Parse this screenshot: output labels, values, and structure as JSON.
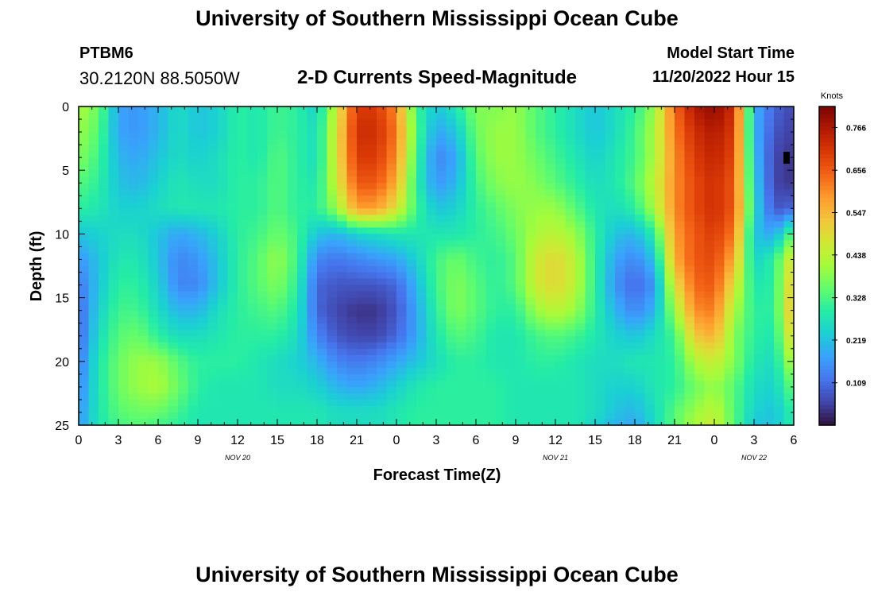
{
  "header": {
    "title": "University of Southern Mississippi Ocean Cube",
    "station_id": "PTBM6",
    "station_coords": "30.2120N  88.5050W",
    "subtitle": "2-D Currents Speed-Magnitude",
    "model_start_label": "Model Start Time",
    "model_start_value": "11/20/2022 Hour 15"
  },
  "footer": {
    "title": "University of Southern Mississippi Ocean Cube"
  },
  "chart_data": {
    "type": "heatmap",
    "title": "2-D Currents Speed-Magnitude",
    "xlabel": "Forecast Time(Z)",
    "ylabel": "Depth (ft)",
    "x_range_hours": [
      0,
      54
    ],
    "ylim": [
      0,
      25
    ],
    "y_inverted": true,
    "x_ticks": [
      "0",
      "3",
      "6",
      "9",
      "12",
      "15",
      "18",
      "21",
      "0",
      "3",
      "6",
      "9",
      "12",
      "15",
      "18",
      "21",
      "0",
      "3",
      "6"
    ],
    "y_ticks": [
      0,
      5,
      10,
      15,
      20,
      25
    ],
    "date_labels": [
      {
        "label": "NOV 20",
        "hour": 12
      },
      {
        "label": "NOV 21",
        "hour": 36
      },
      {
        "label": "NOV 22",
        "hour": 51
      }
    ],
    "colorbar": {
      "unit": "Knots",
      "min": 0.0,
      "max": 0.82,
      "ticks": [
        0.766,
        0.656,
        0.547,
        0.438,
        0.328,
        0.219,
        0.109
      ],
      "colors": [
        "#30123b",
        "#4145ab",
        "#4675ed",
        "#39a2fc",
        "#1bcfd4",
        "#24eca6",
        "#61fc6c",
        "#a4fc3b",
        "#d1e834",
        "#f3c63a",
        "#fe9b2d",
        "#f36315",
        "#d93806",
        "#b11901",
        "#7a0403"
      ]
    },
    "grid_hours": [
      0,
      1.5,
      3,
      4.5,
      6,
      7.5,
      9,
      10.5,
      12,
      13.5,
      15,
      16.5,
      18,
      19.5,
      21,
      22.5,
      24,
      25.5,
      27,
      28.5,
      30,
      31.5,
      33,
      34.5,
      36,
      37.5,
      39,
      40.5,
      42,
      43.5,
      45,
      46.5,
      48,
      49.5,
      51,
      52.5,
      54
    ],
    "grid_depths_ft": [
      0,
      2,
      4,
      6,
      8,
      10,
      12,
      14,
      16,
      18,
      20,
      22,
      24,
      25
    ],
    "speed_knots": [
      [
        0.42,
        0.36,
        0.18,
        0.16,
        0.2,
        0.26,
        0.22,
        0.24,
        0.3,
        0.28,
        0.32,
        0.3,
        0.24,
        0.46,
        0.7,
        0.7,
        0.6,
        0.32,
        0.22,
        0.28,
        0.38,
        0.38,
        0.4,
        0.34,
        0.3,
        0.26,
        0.22,
        0.26,
        0.3,
        0.4,
        0.64,
        0.76,
        0.8,
        0.72,
        0.2,
        0.1,
        0.06
      ],
      [
        0.4,
        0.34,
        0.18,
        0.16,
        0.2,
        0.26,
        0.22,
        0.24,
        0.3,
        0.28,
        0.32,
        0.3,
        0.26,
        0.48,
        0.72,
        0.72,
        0.62,
        0.34,
        0.18,
        0.22,
        0.36,
        0.4,
        0.4,
        0.34,
        0.3,
        0.26,
        0.22,
        0.26,
        0.32,
        0.42,
        0.62,
        0.72,
        0.76,
        0.7,
        0.2,
        0.08,
        0.05
      ],
      [
        0.38,
        0.32,
        0.2,
        0.18,
        0.22,
        0.26,
        0.24,
        0.26,
        0.3,
        0.28,
        0.34,
        0.3,
        0.26,
        0.48,
        0.7,
        0.7,
        0.6,
        0.32,
        0.14,
        0.18,
        0.34,
        0.4,
        0.4,
        0.36,
        0.32,
        0.28,
        0.24,
        0.28,
        0.32,
        0.42,
        0.6,
        0.7,
        0.74,
        0.68,
        0.22,
        0.06,
        0.04
      ],
      [
        0.34,
        0.3,
        0.22,
        0.2,
        0.24,
        0.28,
        0.26,
        0.26,
        0.3,
        0.3,
        0.34,
        0.3,
        0.28,
        0.46,
        0.66,
        0.66,
        0.56,
        0.3,
        0.16,
        0.2,
        0.32,
        0.38,
        0.4,
        0.38,
        0.34,
        0.3,
        0.26,
        0.28,
        0.34,
        0.44,
        0.6,
        0.68,
        0.72,
        0.66,
        0.24,
        0.06,
        0.04
      ],
      [
        0.3,
        0.28,
        0.24,
        0.24,
        0.26,
        0.28,
        0.28,
        0.28,
        0.3,
        0.3,
        0.34,
        0.3,
        0.3,
        0.4,
        0.58,
        0.58,
        0.48,
        0.32,
        0.22,
        0.24,
        0.3,
        0.34,
        0.38,
        0.4,
        0.4,
        0.34,
        0.28,
        0.26,
        0.3,
        0.42,
        0.6,
        0.68,
        0.72,
        0.66,
        0.26,
        0.08,
        0.1
      ],
      [
        0.22,
        0.24,
        0.26,
        0.26,
        0.22,
        0.18,
        0.2,
        0.24,
        0.3,
        0.32,
        0.36,
        0.32,
        0.22,
        0.2,
        0.24,
        0.26,
        0.28,
        0.28,
        0.28,
        0.28,
        0.3,
        0.32,
        0.36,
        0.42,
        0.44,
        0.4,
        0.3,
        0.22,
        0.2,
        0.3,
        0.58,
        0.66,
        0.7,
        0.62,
        0.22,
        0.18,
        0.36
      ],
      [
        0.16,
        0.22,
        0.28,
        0.28,
        0.22,
        0.14,
        0.16,
        0.22,
        0.3,
        0.34,
        0.4,
        0.32,
        0.14,
        0.12,
        0.14,
        0.16,
        0.18,
        0.24,
        0.32,
        0.36,
        0.32,
        0.3,
        0.34,
        0.46,
        0.5,
        0.44,
        0.3,
        0.18,
        0.14,
        0.22,
        0.56,
        0.66,
        0.68,
        0.56,
        0.24,
        0.3,
        0.5
      ],
      [
        0.12,
        0.22,
        0.3,
        0.3,
        0.24,
        0.14,
        0.14,
        0.22,
        0.3,
        0.34,
        0.38,
        0.3,
        0.1,
        0.08,
        0.08,
        0.08,
        0.1,
        0.2,
        0.32,
        0.38,
        0.34,
        0.3,
        0.34,
        0.46,
        0.5,
        0.44,
        0.3,
        0.16,
        0.1,
        0.16,
        0.48,
        0.64,
        0.66,
        0.48,
        0.28,
        0.3,
        0.54
      ],
      [
        0.1,
        0.24,
        0.32,
        0.32,
        0.26,
        0.2,
        0.2,
        0.26,
        0.3,
        0.32,
        0.34,
        0.28,
        0.1,
        0.06,
        0.04,
        0.04,
        0.08,
        0.18,
        0.3,
        0.38,
        0.34,
        0.3,
        0.3,
        0.4,
        0.44,
        0.4,
        0.3,
        0.2,
        0.14,
        0.2,
        0.4,
        0.6,
        0.62,
        0.42,
        0.3,
        0.3,
        0.56
      ],
      [
        0.1,
        0.26,
        0.34,
        0.36,
        0.3,
        0.26,
        0.26,
        0.28,
        0.3,
        0.3,
        0.3,
        0.26,
        0.14,
        0.08,
        0.06,
        0.06,
        0.1,
        0.18,
        0.28,
        0.34,
        0.32,
        0.28,
        0.28,
        0.32,
        0.34,
        0.32,
        0.28,
        0.24,
        0.22,
        0.26,
        0.32,
        0.52,
        0.56,
        0.38,
        0.3,
        0.28,
        0.52
      ],
      [
        0.12,
        0.28,
        0.36,
        0.4,
        0.4,
        0.34,
        0.3,
        0.3,
        0.3,
        0.28,
        0.26,
        0.24,
        0.2,
        0.14,
        0.12,
        0.14,
        0.18,
        0.22,
        0.26,
        0.3,
        0.3,
        0.28,
        0.28,
        0.3,
        0.3,
        0.28,
        0.26,
        0.26,
        0.28,
        0.28,
        0.3,
        0.42,
        0.46,
        0.38,
        0.28,
        0.26,
        0.44
      ],
      [
        0.14,
        0.28,
        0.36,
        0.4,
        0.42,
        0.36,
        0.3,
        0.28,
        0.28,
        0.28,
        0.26,
        0.26,
        0.24,
        0.2,
        0.18,
        0.2,
        0.24,
        0.28,
        0.3,
        0.3,
        0.3,
        0.3,
        0.28,
        0.28,
        0.28,
        0.28,
        0.26,
        0.24,
        0.24,
        0.28,
        0.3,
        0.36,
        0.4,
        0.34,
        0.26,
        0.24,
        0.36
      ],
      [
        0.16,
        0.28,
        0.34,
        0.36,
        0.36,
        0.32,
        0.28,
        0.28,
        0.28,
        0.28,
        0.28,
        0.28,
        0.28,
        0.26,
        0.26,
        0.26,
        0.28,
        0.3,
        0.3,
        0.3,
        0.3,
        0.3,
        0.28,
        0.28,
        0.28,
        0.28,
        0.26,
        0.22,
        0.2,
        0.26,
        0.34,
        0.4,
        0.44,
        0.34,
        0.24,
        0.22,
        0.3
      ],
      [
        0.16,
        0.28,
        0.32,
        0.34,
        0.32,
        0.3,
        0.28,
        0.28,
        0.28,
        0.28,
        0.28,
        0.28,
        0.28,
        0.26,
        0.26,
        0.26,
        0.28,
        0.3,
        0.3,
        0.3,
        0.3,
        0.3,
        0.28,
        0.28,
        0.28,
        0.28,
        0.24,
        0.2,
        0.18,
        0.26,
        0.34,
        0.42,
        0.46,
        0.34,
        0.22,
        0.22,
        0.3
      ]
    ]
  }
}
